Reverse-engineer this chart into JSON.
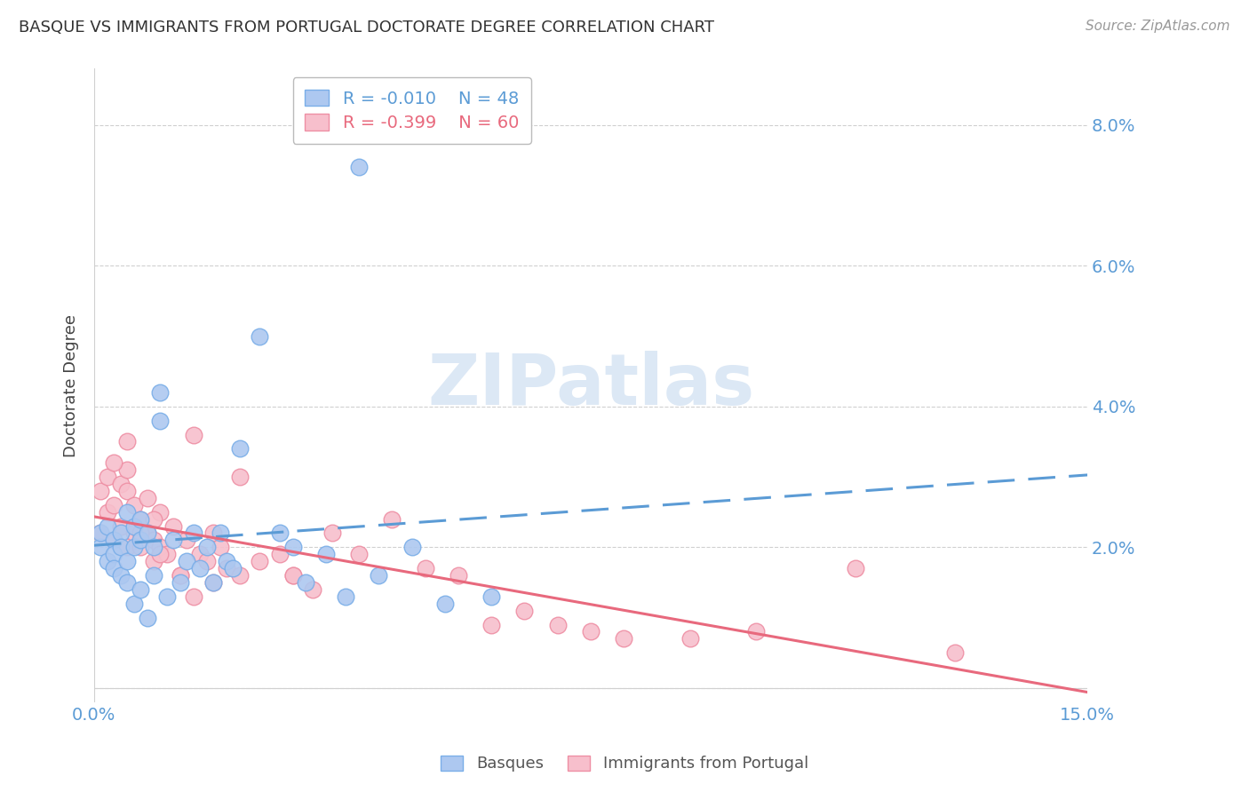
{
  "title": "BASQUE VS IMMIGRANTS FROM PORTUGAL DOCTORATE DEGREE CORRELATION CHART",
  "source": "Source: ZipAtlas.com",
  "ylabel": "Doctorate Degree",
  "xlim": [
    0.0,
    0.15
  ],
  "ylim": [
    -0.002,
    0.088
  ],
  "yticks": [
    0.0,
    0.02,
    0.04,
    0.06,
    0.08
  ],
  "ytick_labels": [
    "",
    "2.0%",
    "4.0%",
    "6.0%",
    "8.0%"
  ],
  "xticks": [
    0.0,
    0.05,
    0.1,
    0.15
  ],
  "xtick_labels": [
    "0.0%",
    "",
    "",
    "15.0%"
  ],
  "legend_r1": "-0.010",
  "legend_n1": "48",
  "legend_r2": "-0.399",
  "legend_n2": "60",
  "label_basques": "Basques",
  "label_immigrants": "Immigrants from Portugal",
  "color_blue_fill": "#adc8f0",
  "color_blue_edge": "#7aaee8",
  "color_pink_fill": "#f7bfcc",
  "color_pink_edge": "#ee8fa4",
  "color_blue_line": "#5b9bd5",
  "color_pink_line": "#e8697d",
  "color_axis_text": "#5b9bd5",
  "color_grid": "#d0d0d0",
  "watermark_color": "#dce8f5",
  "basques_x": [
    0.001,
    0.001,
    0.002,
    0.002,
    0.003,
    0.003,
    0.003,
    0.004,
    0.004,
    0.004,
    0.005,
    0.005,
    0.005,
    0.006,
    0.006,
    0.006,
    0.007,
    0.007,
    0.007,
    0.008,
    0.008,
    0.009,
    0.009,
    0.01,
    0.01,
    0.011,
    0.012,
    0.013,
    0.014,
    0.015,
    0.016,
    0.017,
    0.018,
    0.019,
    0.02,
    0.021,
    0.022,
    0.025,
    0.028,
    0.03,
    0.032,
    0.035,
    0.038,
    0.04,
    0.043,
    0.048,
    0.053,
    0.06
  ],
  "basques_y": [
    0.02,
    0.022,
    0.018,
    0.023,
    0.021,
    0.019,
    0.017,
    0.016,
    0.022,
    0.02,
    0.018,
    0.025,
    0.015,
    0.023,
    0.02,
    0.012,
    0.024,
    0.021,
    0.014,
    0.022,
    0.01,
    0.02,
    0.016,
    0.042,
    0.038,
    0.013,
    0.021,
    0.015,
    0.018,
    0.022,
    0.017,
    0.02,
    0.015,
    0.022,
    0.018,
    0.017,
    0.034,
    0.05,
    0.022,
    0.02,
    0.015,
    0.019,
    0.013,
    0.074,
    0.016,
    0.02,
    0.012,
    0.013
  ],
  "immigrants_x": [
    0.001,
    0.001,
    0.002,
    0.002,
    0.003,
    0.003,
    0.004,
    0.004,
    0.005,
    0.005,
    0.005,
    0.006,
    0.006,
    0.007,
    0.007,
    0.008,
    0.008,
    0.009,
    0.009,
    0.01,
    0.01,
    0.011,
    0.012,
    0.013,
    0.014,
    0.015,
    0.016,
    0.017,
    0.018,
    0.019,
    0.02,
    0.022,
    0.025,
    0.028,
    0.03,
    0.033,
    0.036,
    0.04,
    0.045,
    0.05,
    0.055,
    0.06,
    0.065,
    0.07,
    0.075,
    0.08,
    0.09,
    0.1,
    0.115,
    0.13,
    0.003,
    0.005,
    0.007,
    0.009,
    0.01,
    0.013,
    0.015,
    0.018,
    0.022,
    0.03
  ],
  "immigrants_y": [
    0.022,
    0.028,
    0.025,
    0.03,
    0.021,
    0.026,
    0.023,
    0.029,
    0.028,
    0.02,
    0.031,
    0.022,
    0.026,
    0.024,
    0.02,
    0.022,
    0.027,
    0.021,
    0.018,
    0.025,
    0.02,
    0.019,
    0.023,
    0.016,
    0.021,
    0.036,
    0.019,
    0.018,
    0.022,
    0.02,
    0.017,
    0.016,
    0.018,
    0.019,
    0.016,
    0.014,
    0.022,
    0.019,
    0.024,
    0.017,
    0.016,
    0.009,
    0.011,
    0.009,
    0.008,
    0.007,
    0.007,
    0.008,
    0.017,
    0.005,
    0.032,
    0.035,
    0.022,
    0.024,
    0.019,
    0.016,
    0.013,
    0.015,
    0.03,
    0.016
  ]
}
